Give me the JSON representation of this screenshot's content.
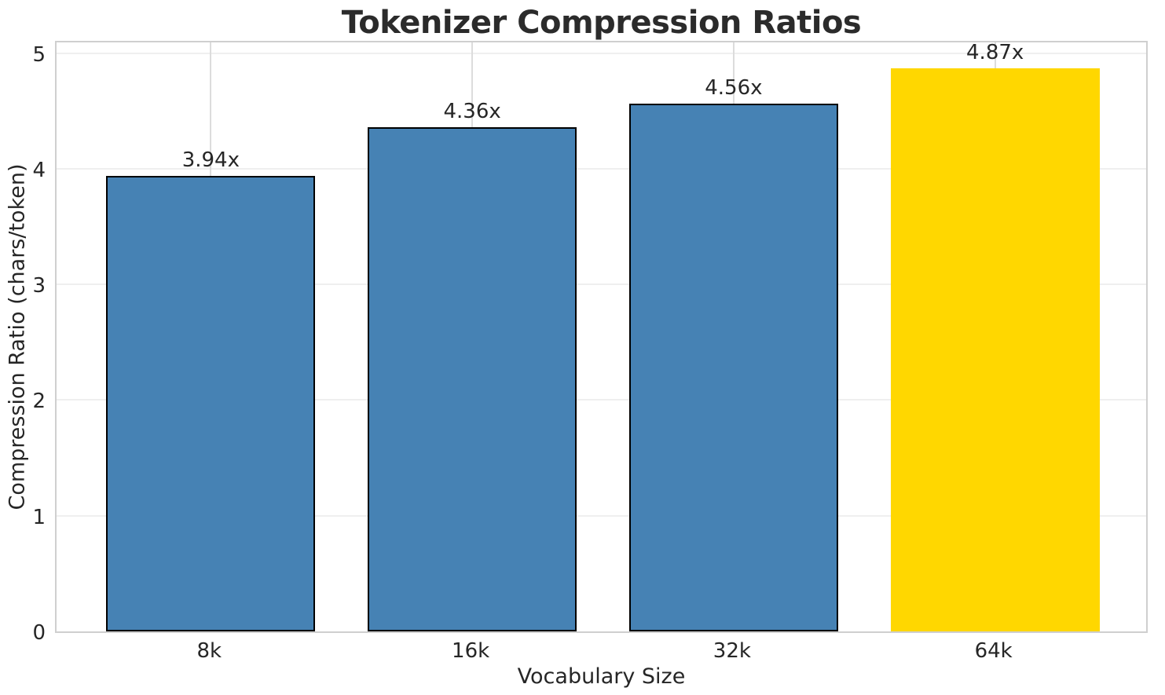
{
  "chart_data": {
    "type": "bar",
    "title": "Tokenizer Compression Ratios",
    "xlabel": "Vocabulary Size",
    "ylabel": "Compression Ratio (chars/token)",
    "categories": [
      "8k",
      "16k",
      "32k",
      "64k"
    ],
    "values": [
      3.94,
      4.36,
      4.56,
      4.87
    ],
    "bar_labels": [
      "3.94x",
      "4.36x",
      "4.56x",
      "4.87x"
    ],
    "bar_colors": [
      "#4682B4",
      "#4682B4",
      "#4682B4",
      "#FFD700"
    ],
    "bar_edge_colors": [
      "#000000",
      "#000000",
      "#000000",
      "none"
    ],
    "highlight_index": 3,
    "yticks": [
      0,
      1,
      2,
      3,
      4,
      5
    ],
    "ylim": [
      0,
      5.12
    ],
    "grid": true,
    "legend": false,
    "layout": {
      "bar_width_fraction": 0.8,
      "x_edge_padding": 0.59
    }
  }
}
